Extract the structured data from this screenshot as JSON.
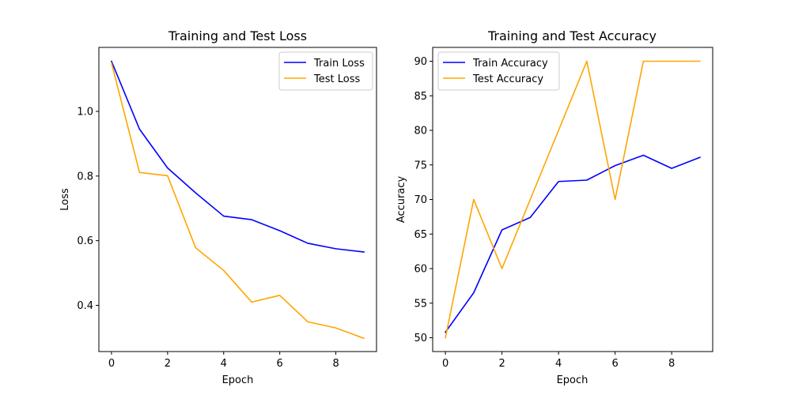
{
  "chart_data": [
    {
      "type": "line",
      "title": "Training and Test Loss",
      "xlabel": "Epoch",
      "ylabel": "Loss",
      "xlim": [
        -0.45,
        9.45
      ],
      "ylim": [
        0.257,
        1.198
      ],
      "xticks": [
        0,
        2,
        4,
        6,
        8
      ],
      "xtick_labels": [
        "0",
        "2",
        "4",
        "6",
        "8"
      ],
      "yticks": [
        0.4,
        0.6,
        0.8,
        1.0
      ],
      "ytick_labels": [
        "0.4",
        "0.6",
        "0.8",
        "1.0"
      ],
      "x": [
        0,
        1,
        2,
        3,
        4,
        5,
        6,
        7,
        8,
        9
      ],
      "legend_position": "top-right",
      "grid": false,
      "series": [
        {
          "name": "Train Loss",
          "color": "#0000ff",
          "values": [
            1.155,
            0.945,
            0.825,
            0.748,
            0.676,
            0.665,
            0.631,
            0.592,
            0.575,
            0.565
          ]
        },
        {
          "name": "Test Loss",
          "color": "#ffa500",
          "values": [
            1.15,
            0.811,
            0.801,
            0.578,
            0.508,
            0.41,
            0.431,
            0.349,
            0.33,
            0.298
          ]
        }
      ]
    },
    {
      "type": "line",
      "title": "Training and Test Accuracy",
      "xlabel": "Epoch",
      "ylabel": "Accuracy",
      "xlim": [
        -0.45,
        9.45
      ],
      "ylim": [
        48.0,
        92.0
      ],
      "xticks": [
        0,
        2,
        4,
        6,
        8
      ],
      "xtick_labels": [
        "0",
        "2",
        "4",
        "6",
        "8"
      ],
      "yticks": [
        50,
        55,
        60,
        65,
        70,
        75,
        80,
        85,
        90
      ],
      "ytick_labels": [
        "50",
        "55",
        "60",
        "65",
        "70",
        "75",
        "80",
        "85",
        "90"
      ],
      "x": [
        0,
        1,
        2,
        3,
        4,
        5,
        6,
        7,
        8,
        9
      ],
      "legend_position": "top-left",
      "grid": false,
      "series": [
        {
          "name": "Train Accuracy",
          "color": "#0000ff",
          "values": [
            50.8,
            56.5,
            65.6,
            67.4,
            72.6,
            72.8,
            74.9,
            76.4,
            74.5,
            76.1
          ]
        },
        {
          "name": "Test Accuracy",
          "color": "#ffa500",
          "values": [
            50.0,
            70.0,
            60.0,
            70.0,
            80.0,
            90.0,
            70.0,
            90.0,
            90.0,
            90.0
          ]
        }
      ]
    }
  ]
}
